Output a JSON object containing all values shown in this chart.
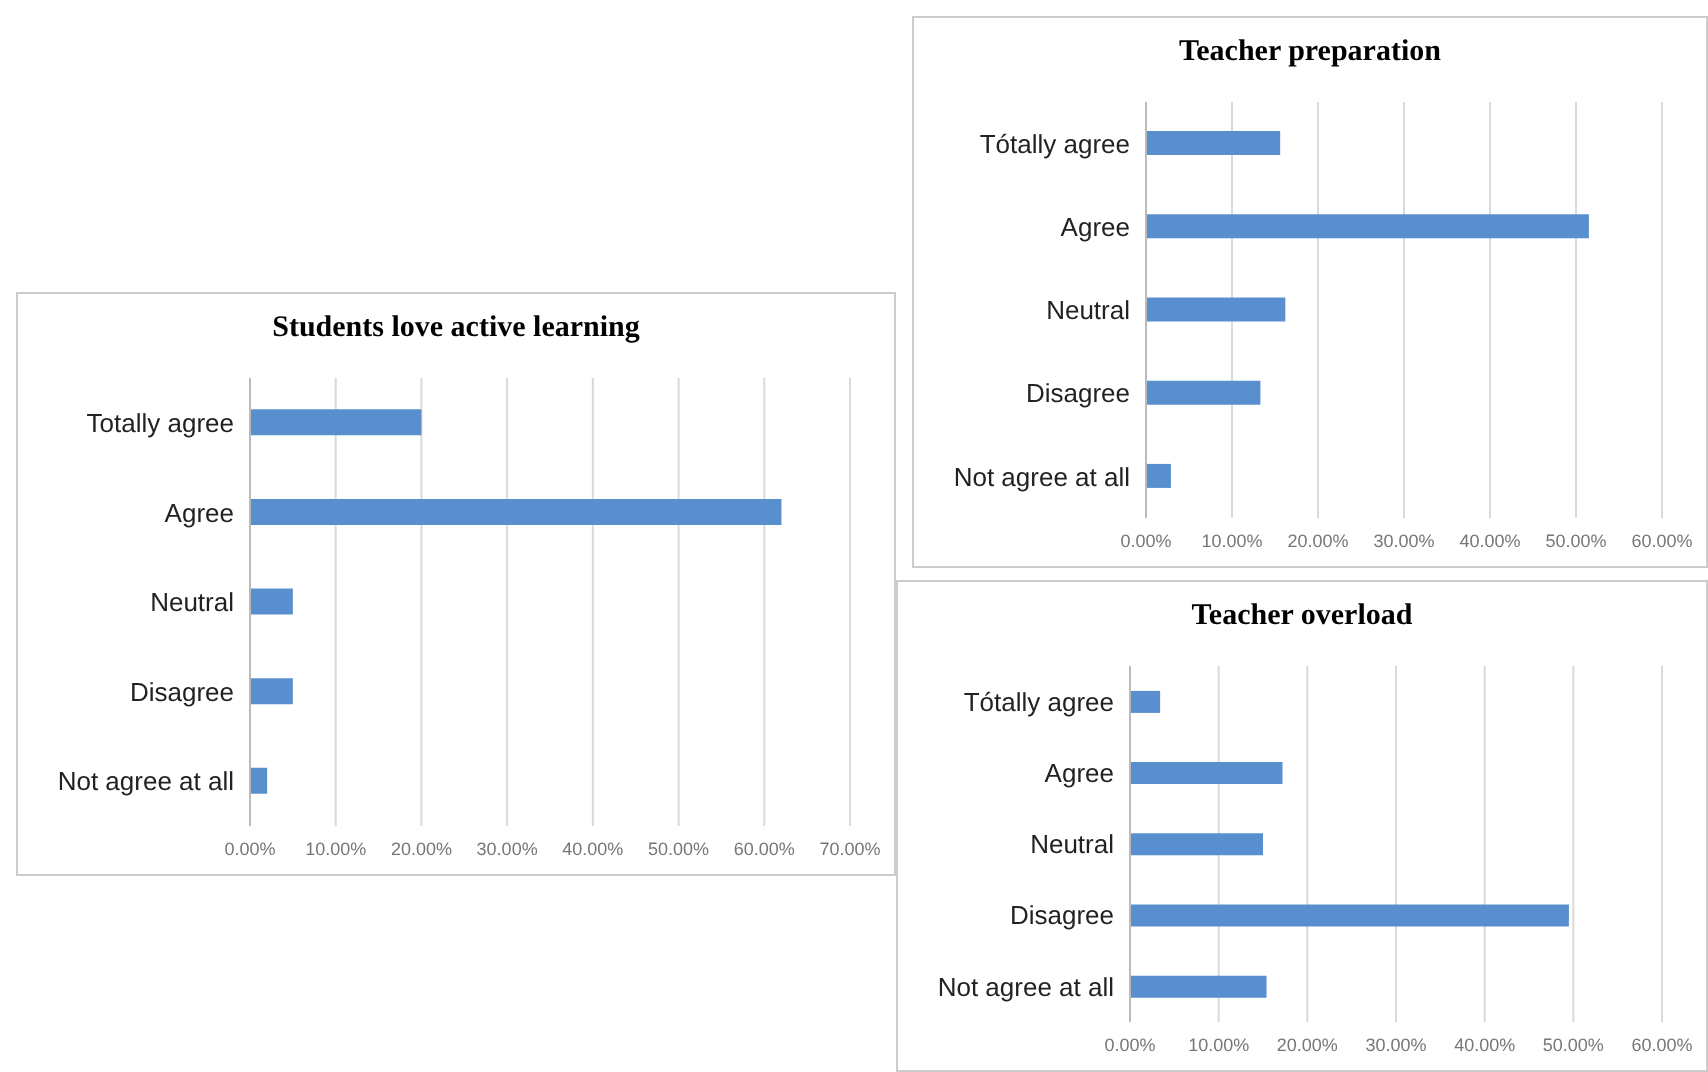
{
  "chart_data": [
    {
      "type": "bar",
      "orientation": "horizontal",
      "title": "Students love active learning",
      "categories": [
        "Totally agree",
        "Agree",
        "Neutral",
        "Disagree",
        "Not agree at all"
      ],
      "values": [
        20,
        62,
        5,
        5,
        2
      ],
      "color": "#5a8fcf",
      "xlim": [
        0,
        70
      ],
      "xticks": [
        {
          "value": 0,
          "label": "0.00%"
        },
        {
          "value": 10,
          "label": "10.00%"
        },
        {
          "value": 20,
          "label": "20.00%"
        },
        {
          "value": 30,
          "label": "30.00%"
        },
        {
          "value": 40,
          "label": "40.00%"
        },
        {
          "value": 50,
          "label": "50.00%"
        },
        {
          "value": 60,
          "label": "60.00%"
        },
        {
          "value": 70,
          "label": "70.00%"
        }
      ],
      "grid": "x"
    },
    {
      "type": "bar",
      "orientation": "horizontal",
      "title": "Teacher preparation",
      "categories": [
        "Tótally agree",
        "Agree",
        "Neutral",
        "Disagree",
        "Not agree at all"
      ],
      "values": [
        15.6,
        51.5,
        16.2,
        13.3,
        2.9
      ],
      "color": "#5a8fcf",
      "xlim": [
        0,
        60
      ],
      "xticks": [
        {
          "value": 0,
          "label": "0.00%"
        },
        {
          "value": 10,
          "label": "10.00%"
        },
        {
          "value": 20,
          "label": "20.00%"
        },
        {
          "value": 30,
          "label": "30.00%"
        },
        {
          "value": 40,
          "label": "40.00%"
        },
        {
          "value": 50,
          "label": "50.00%"
        },
        {
          "value": 60,
          "label": "60.00%"
        }
      ],
      "grid": "x"
    },
    {
      "type": "bar",
      "orientation": "horizontal",
      "title": "Teacher overload",
      "categories": [
        "Tótally agree",
        "Agree",
        "Neutral",
        "Disagree",
        "Not agree at all"
      ],
      "values": [
        3.4,
        17.2,
        15,
        49.5,
        15.4
      ],
      "color": "#5a8fcf",
      "xlim": [
        0,
        60
      ],
      "xticks": [
        {
          "value": 0,
          "label": "0.00%"
        },
        {
          "value": 10,
          "label": "10.00%"
        },
        {
          "value": 20,
          "label": "20.00%"
        },
        {
          "value": 30,
          "label": "30.00%"
        },
        {
          "value": 40,
          "label": "40.00%"
        },
        {
          "value": 50,
          "label": "50.00%"
        },
        {
          "value": 60,
          "label": "60.00%"
        }
      ],
      "grid": "x"
    }
  ]
}
